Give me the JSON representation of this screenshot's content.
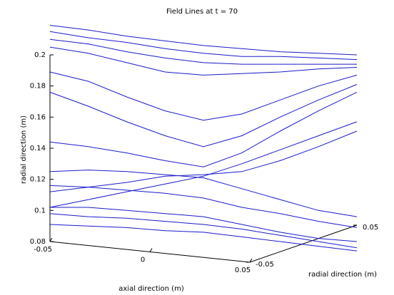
{
  "chart_data": {
    "type": "line3d",
    "title": "Field Lines at t = 70",
    "x_label": "axial direction (m)",
    "y_label": "radial direction (m)",
    "z_label": "radial direction (m)",
    "color": "#1a1acc",
    "xlim": [
      -0.05,
      0.05
    ],
    "xticks": [
      -0.05,
      0,
      0.05
    ],
    "ylim": [
      -0.05,
      0.05
    ],
    "yticks": [
      -0.05,
      0.05
    ],
    "zlim": [
      0.08,
      0.2
    ],
    "zticks": [
      0.08,
      0.1,
      0.12,
      0.14,
      0.16,
      0.18,
      0.2
    ],
    "x": [
      -0.05,
      -0.0375,
      -0.025,
      -0.0125,
      0,
      0.0125,
      0.025,
      0.0375,
      0.05
    ],
    "series": [
      {
        "values": [
          0.219,
          0.216,
          0.212,
          0.209,
          0.206,
          0.204,
          0.202,
          0.201,
          0.2
        ]
      },
      {
        "values": [
          0.215,
          0.211,
          0.208,
          0.204,
          0.201,
          0.199,
          0.199,
          0.198,
          0.197
        ]
      },
      {
        "values": [
          0.21,
          0.207,
          0.202,
          0.198,
          0.195,
          0.194,
          0.194,
          0.194,
          0.194
        ]
      },
      {
        "values": [
          0.205,
          0.201,
          0.195,
          0.189,
          0.187,
          0.188,
          0.189,
          0.191,
          0.192
        ]
      },
      {
        "values": [
          0.189,
          0.183,
          0.173,
          0.164,
          0.158,
          0.162,
          0.171,
          0.18,
          0.187
        ]
      },
      {
        "values": [
          0.176,
          0.167,
          0.157,
          0.148,
          0.141,
          0.148,
          0.16,
          0.171,
          0.181
        ]
      },
      {
        "values": [
          0.144,
          0.141,
          0.137,
          0.132,
          0.128,
          0.137,
          0.151,
          0.164,
          0.176
        ]
      },
      {
        "values": [
          0.125,
          0.126,
          0.125,
          0.123,
          0.121,
          0.114,
          0.107,
          0.1,
          0.096
        ]
      },
      {
        "values": [
          0.116,
          0.115,
          0.113,
          0.111,
          0.108,
          0.102,
          0.098,
          0.093,
          0.089
        ]
      },
      {
        "values": [
          0.102,
          0.102,
          0.1,
          0.098,
          0.096,
          0.091,
          0.086,
          0.082,
          0.08
        ]
      },
      {
        "values": [
          0.098,
          0.096,
          0.095,
          0.093,
          0.091,
          0.088,
          0.084,
          0.08,
          0.076
        ]
      },
      {
        "values": [
          0.091,
          0.09,
          0.089,
          0.087,
          0.086,
          0.083,
          0.08,
          0.077,
          0.074
        ]
      },
      {
        "values": [
          0.102,
          0.107,
          0.112,
          0.117,
          0.122,
          0.13,
          0.139,
          0.148,
          0.157
        ]
      },
      {
        "values": [
          0.112,
          0.115,
          0.118,
          0.122,
          0.123,
          0.125,
          0.132,
          0.141,
          0.151
        ]
      }
    ]
  }
}
